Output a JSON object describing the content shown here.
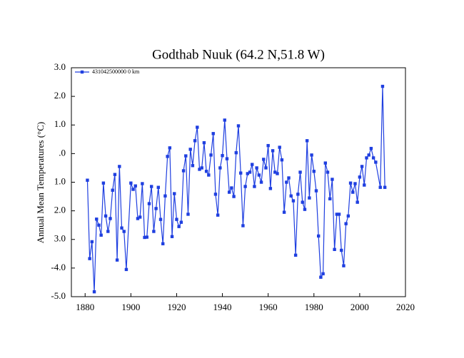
{
  "chart_data": {
    "type": "line",
    "title": "Godthab Nuuk (64.2 N,51.8 W)",
    "y_label": "Annual Mean Temperatures (°C)",
    "xlim": [
      1874,
      2020
    ],
    "xticks": [
      1880,
      1900,
      1920,
      1940,
      1960,
      1980,
      2000,
      2020
    ],
    "ylim": [
      -5,
      3
    ],
    "yticks": [
      {
        "value": 3,
        "label": "3.0"
      },
      {
        "value": 2,
        "label": "2.0"
      },
      {
        "value": 1,
        "label": "1.0"
      },
      {
        "value": 0,
        "label": ".0"
      },
      {
        "value": -1,
        "label": "1.0"
      },
      {
        "value": -2,
        "label": "2.0"
      },
      {
        "value": -3,
        "label": "3.0"
      },
      {
        "value": -4,
        "label": "-4.0"
      },
      {
        "value": -5,
        "label": "-5.0"
      }
    ],
    "legend": "top-left",
    "x": [
      1881,
      1882,
      1883,
      1884,
      1885,
      1886,
      1887,
      1888,
      1889,
      1890,
      1891,
      1892,
      1893,
      1894,
      1895,
      1896,
      1897,
      1898,
      1900,
      1901,
      1902,
      1903,
      1904,
      1905,
      1906,
      1907,
      1908,
      1909,
      1910,
      1911,
      1912,
      1913,
      1914,
      1915,
      1916,
      1917,
      1918,
      1919,
      1920,
      1921,
      1922,
      1923,
      1924,
      1925,
      1926,
      1927,
      1928,
      1929,
      1930,
      1931,
      1932,
      1933,
      1934,
      1935,
      1936,
      1937,
      1938,
      1939,
      1940,
      1941,
      1942,
      1943,
      1944,
      1945,
      1946,
      1947,
      1948,
      1949,
      1950,
      1951,
      1952,
      1953,
      1954,
      1955,
      1956,
      1957,
      1958,
      1959,
      1960,
      1961,
      1962,
      1963,
      1964,
      1965,
      1966,
      1967,
      1968,
      1969,
      1970,
      1971,
      1972,
      1973,
      1974,
      1975,
      1976,
      1977,
      1978,
      1979,
      1980,
      1981,
      1982,
      1983,
      1984,
      1985,
      1986,
      1987,
      1988,
      1989,
      1990,
      1991,
      1992,
      1993,
      1994,
      1995,
      1996,
      1997,
      1998,
      1999,
      2000,
      2001,
      2002,
      2003,
      2004,
      2005,
      2006,
      2007,
      2009,
      2010,
      2011
    ],
    "series": [
      {
        "name": "431042500000  0 km",
        "color": "#1f3fe0",
        "values": [
          -0.93,
          -3.67,
          -3.08,
          -4.83,
          -2.29,
          -2.5,
          -2.85,
          -1.03,
          -2.18,
          -2.72,
          -2.27,
          -1.28,
          -0.73,
          -3.72,
          -0.45,
          -2.6,
          -2.72,
          -4.05,
          -1.03,
          -1.25,
          -1.13,
          -2.27,
          -2.22,
          -1.05,
          -2.93,
          -2.92,
          -1.75,
          -1.15,
          -2.72,
          -1.92,
          -1.18,
          -2.3,
          -3.15,
          -1.48,
          -0.1,
          0.2,
          -2.9,
          -1.4,
          -2.3,
          -2.55,
          -2.4,
          -0.6,
          -0.08,
          -2.12,
          0.15,
          -0.42,
          0.45,
          0.92,
          -0.55,
          -0.5,
          0.38,
          -0.62,
          -0.75,
          -0.05,
          0.7,
          -1.42,
          -2.15,
          -0.5,
          -0.07,
          1.17,
          -0.18,
          -1.35,
          -1.2,
          -1.5,
          0.03,
          0.97,
          -0.68,
          -2.52,
          -1.15,
          -0.7,
          -0.65,
          -0.38,
          -1.15,
          -0.5,
          -0.75,
          -1.0,
          -0.2,
          -0.5,
          0.28,
          -1.22,
          0.1,
          -0.65,
          -0.7,
          0.22,
          -0.22,
          -2.05,
          -1.0,
          -0.85,
          -1.48,
          -1.65,
          -3.55,
          -1.42,
          -0.65,
          -1.7,
          -1.95,
          0.45,
          -1.55,
          -0.05,
          -0.62,
          -1.3,
          -2.88,
          -4.32,
          -4.2,
          -0.33,
          -0.65,
          -1.58,
          -0.9,
          -3.35,
          -2.12,
          -2.12,
          -3.38,
          -3.92,
          -2.45,
          -2.18,
          -1.03,
          -1.35,
          -1.05,
          -1.7,
          -0.82,
          -0.45,
          -1.1,
          -0.15,
          -0.05,
          0.18,
          -0.15,
          -0.3,
          -1.18,
          2.35,
          -1.18
        ]
      }
    ]
  }
}
